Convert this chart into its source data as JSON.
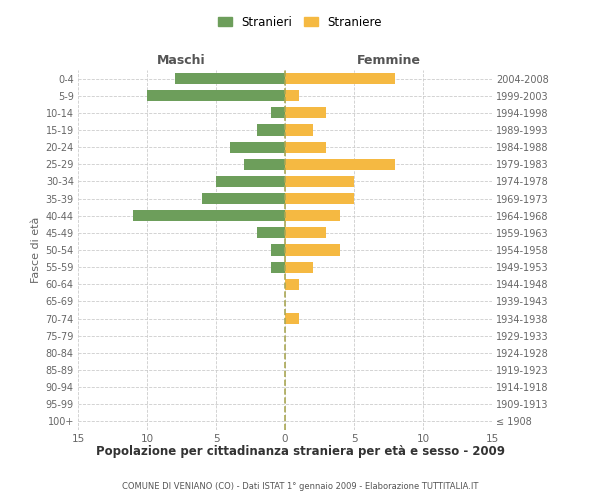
{
  "age_groups": [
    "100+",
    "95-99",
    "90-94",
    "85-89",
    "80-84",
    "75-79",
    "70-74",
    "65-69",
    "60-64",
    "55-59",
    "50-54",
    "45-49",
    "40-44",
    "35-39",
    "30-34",
    "25-29",
    "20-24",
    "15-19",
    "10-14",
    "5-9",
    "0-4"
  ],
  "birth_years": [
    "≤ 1908",
    "1909-1913",
    "1914-1918",
    "1919-1923",
    "1924-1928",
    "1929-1933",
    "1934-1938",
    "1939-1943",
    "1944-1948",
    "1949-1953",
    "1954-1958",
    "1959-1963",
    "1964-1968",
    "1969-1973",
    "1974-1978",
    "1979-1983",
    "1984-1988",
    "1989-1993",
    "1994-1998",
    "1999-2003",
    "2004-2008"
  ],
  "males": [
    0,
    0,
    0,
    0,
    0,
    0,
    0,
    0,
    0,
    1,
    1,
    2,
    11,
    6,
    5,
    3,
    4,
    2,
    1,
    10,
    8
  ],
  "females": [
    0,
    0,
    0,
    0,
    0,
    0,
    1,
    0,
    1,
    2,
    4,
    3,
    4,
    5,
    5,
    8,
    3,
    2,
    3,
    1,
    8
  ],
  "male_color": "#6d9e5b",
  "female_color": "#f5b942",
  "background_color": "#ffffff",
  "grid_color": "#cccccc",
  "title": "Popolazione per cittadinanza straniera per età e sesso - 2009",
  "subtitle": "COMUNE DI VENIANO (CO) - Dati ISTAT 1° gennaio 2009 - Elaborazione TUTTITALIA.IT",
  "left_label": "Maschi",
  "right_label": "Femmine",
  "ylabel_left": "Fasce di età",
  "legend_male": "Stranieri",
  "legend_female": "Straniere",
  "xlim": 15,
  "dashed_line_color": "#aaa855"
}
